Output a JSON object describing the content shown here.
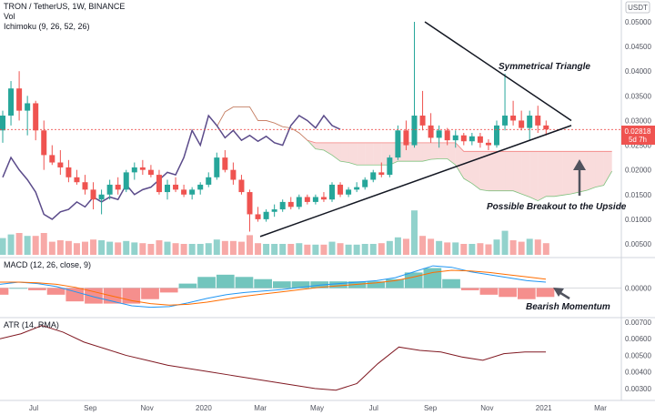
{
  "header": {
    "symbol": "TRON / TetherUS, 1W, BINANCE",
    "vol_label": "Vol",
    "ichimoku_label": "Ichimoku (9, 26, 52, 26)",
    "quote_currency": "USDT"
  },
  "price_axis": {
    "ticks": [
      "0.05000",
      "0.04500",
      "0.04000",
      "0.03500",
      "0.03000",
      "0.02500",
      "0.02000",
      "0.01500",
      "0.01000",
      "0.00500"
    ],
    "current_price": "0.02818",
    "countdown": "5d 7h",
    "current_color": "#ef5350"
  },
  "time_axis": {
    "labels": [
      "Jul",
      "Sep",
      "Nov",
      "2020",
      "Mar",
      "May",
      "Jul",
      "Sep",
      "Nov",
      "2021",
      "Mar"
    ]
  },
  "macd": {
    "label": "MACD (12, 26, close, 9)",
    "tick": "0.00000"
  },
  "atr": {
    "label": "ATR (14, RMA)",
    "ticks": [
      "0.00700",
      "0.00600",
      "0.00500",
      "0.00400",
      "0.00300"
    ]
  },
  "annotations": {
    "triangle": "Symmetrical Triangle",
    "breakout": "Possible Breakout to the Upside",
    "momentum": "Bearish Momentum"
  },
  "colors": {
    "up": "#26a69a",
    "down": "#ef5350",
    "macd_line": "#2196f3",
    "signal_line": "#ff6d00",
    "atr_line": "#801922",
    "lagging_span": "#5b4b8a",
    "cloud_bull": "#a5d6a7",
    "cloud_bear": "#ef9a9a"
  },
  "chart_data": {
    "type": "candlestick",
    "interval": "1W",
    "candles": [
      {
        "o": 0.028,
        "h": 0.032,
        "l": 0.0255,
        "c": 0.031
      },
      {
        "o": 0.031,
        "h": 0.038,
        "l": 0.029,
        "c": 0.0365
      },
      {
        "o": 0.0365,
        "h": 0.04,
        "l": 0.03,
        "c": 0.032
      },
      {
        "o": 0.032,
        "h": 0.035,
        "l": 0.027,
        "c": 0.0335
      },
      {
        "o": 0.0335,
        "h": 0.034,
        "l": 0.026,
        "c": 0.028
      },
      {
        "o": 0.028,
        "h": 0.03,
        "l": 0.02,
        "c": 0.023
      },
      {
        "o": 0.023,
        "h": 0.025,
        "l": 0.021,
        "c": 0.0215
      },
      {
        "o": 0.0215,
        "h": 0.024,
        "l": 0.019,
        "c": 0.0205
      },
      {
        "o": 0.0205,
        "h": 0.022,
        "l": 0.0175,
        "c": 0.0185
      },
      {
        "o": 0.0185,
        "h": 0.02,
        "l": 0.017,
        "c": 0.0175
      },
      {
        "o": 0.0175,
        "h": 0.019,
        "l": 0.015,
        "c": 0.016
      },
      {
        "o": 0.016,
        "h": 0.0175,
        "l": 0.012,
        "c": 0.014
      },
      {
        "o": 0.014,
        "h": 0.016,
        "l": 0.011,
        "c": 0.015
      },
      {
        "o": 0.015,
        "h": 0.018,
        "l": 0.014,
        "c": 0.017
      },
      {
        "o": 0.017,
        "h": 0.0185,
        "l": 0.015,
        "c": 0.016
      },
      {
        "o": 0.016,
        "h": 0.02,
        "l": 0.0155,
        "c": 0.0195
      },
      {
        "o": 0.0195,
        "h": 0.0215,
        "l": 0.018,
        "c": 0.0205
      },
      {
        "o": 0.0205,
        "h": 0.022,
        "l": 0.019,
        "c": 0.02
      },
      {
        "o": 0.02,
        "h": 0.021,
        "l": 0.0185,
        "c": 0.019
      },
      {
        "o": 0.019,
        "h": 0.02,
        "l": 0.015,
        "c": 0.0155
      },
      {
        "o": 0.0155,
        "h": 0.018,
        "l": 0.014,
        "c": 0.017
      },
      {
        "o": 0.017,
        "h": 0.0185,
        "l": 0.0155,
        "c": 0.016
      },
      {
        "o": 0.016,
        "h": 0.017,
        "l": 0.0145,
        "c": 0.015
      },
      {
        "o": 0.015,
        "h": 0.0165,
        "l": 0.014,
        "c": 0.016
      },
      {
        "o": 0.016,
        "h": 0.0175,
        "l": 0.015,
        "c": 0.017
      },
      {
        "o": 0.017,
        "h": 0.0195,
        "l": 0.0165,
        "c": 0.0185
      },
      {
        "o": 0.0185,
        "h": 0.0235,
        "l": 0.018,
        "c": 0.0225
      },
      {
        "o": 0.0225,
        "h": 0.024,
        "l": 0.0195,
        "c": 0.02
      },
      {
        "o": 0.02,
        "h": 0.0215,
        "l": 0.017,
        "c": 0.018
      },
      {
        "o": 0.018,
        "h": 0.019,
        "l": 0.015,
        "c": 0.0155
      },
      {
        "o": 0.0155,
        "h": 0.016,
        "l": 0.0075,
        "c": 0.011
      },
      {
        "o": 0.011,
        "h": 0.0125,
        "l": 0.0095,
        "c": 0.01
      },
      {
        "o": 0.01,
        "h": 0.012,
        "l": 0.0095,
        "c": 0.0115
      },
      {
        "o": 0.0115,
        "h": 0.013,
        "l": 0.0105,
        "c": 0.012
      },
      {
        "o": 0.012,
        "h": 0.014,
        "l": 0.0115,
        "c": 0.0135
      },
      {
        "o": 0.0135,
        "h": 0.0145,
        "l": 0.012,
        "c": 0.0125
      },
      {
        "o": 0.0125,
        "h": 0.015,
        "l": 0.012,
        "c": 0.0145
      },
      {
        "o": 0.0145,
        "h": 0.015,
        "l": 0.013,
        "c": 0.0135
      },
      {
        "o": 0.0135,
        "h": 0.015,
        "l": 0.013,
        "c": 0.0145
      },
      {
        "o": 0.0145,
        "h": 0.0155,
        "l": 0.0135,
        "c": 0.014
      },
      {
        "o": 0.014,
        "h": 0.0175,
        "l": 0.0135,
        "c": 0.017
      },
      {
        "o": 0.017,
        "h": 0.0175,
        "l": 0.0145,
        "c": 0.015
      },
      {
        "o": 0.015,
        "h": 0.0165,
        "l": 0.0145,
        "c": 0.016
      },
      {
        "o": 0.016,
        "h": 0.0175,
        "l": 0.0155,
        "c": 0.0165
      },
      {
        "o": 0.0165,
        "h": 0.0185,
        "l": 0.016,
        "c": 0.018
      },
      {
        "o": 0.018,
        "h": 0.02,
        "l": 0.0175,
        "c": 0.0195
      },
      {
        "o": 0.0195,
        "h": 0.0215,
        "l": 0.0185,
        "c": 0.019
      },
      {
        "o": 0.019,
        "h": 0.023,
        "l": 0.0185,
        "c": 0.0225
      },
      {
        "o": 0.0225,
        "h": 0.029,
        "l": 0.022,
        "c": 0.028
      },
      {
        "o": 0.028,
        "h": 0.03,
        "l": 0.024,
        "c": 0.025
      },
      {
        "o": 0.025,
        "h": 0.05,
        "l": 0.0245,
        "c": 0.031
      },
      {
        "o": 0.031,
        "h": 0.036,
        "l": 0.028,
        "c": 0.029
      },
      {
        "o": 0.029,
        "h": 0.0315,
        "l": 0.0255,
        "c": 0.0265
      },
      {
        "o": 0.0265,
        "h": 0.029,
        "l": 0.0245,
        "c": 0.028
      },
      {
        "o": 0.028,
        "h": 0.0285,
        "l": 0.025,
        "c": 0.026
      },
      {
        "o": 0.026,
        "h": 0.028,
        "l": 0.0245,
        "c": 0.027
      },
      {
        "o": 0.027,
        "h": 0.0275,
        "l": 0.025,
        "c": 0.0258
      },
      {
        "o": 0.0258,
        "h": 0.0275,
        "l": 0.025,
        "c": 0.0268
      },
      {
        "o": 0.0268,
        "h": 0.0275,
        "l": 0.0245,
        "c": 0.0255
      },
      {
        "o": 0.0255,
        "h": 0.0262,
        "l": 0.024,
        "c": 0.025
      },
      {
        "o": 0.025,
        "h": 0.03,
        "l": 0.0245,
        "c": 0.029
      },
      {
        "o": 0.029,
        "h": 0.0395,
        "l": 0.028,
        "c": 0.031
      },
      {
        "o": 0.031,
        "h": 0.034,
        "l": 0.029,
        "c": 0.03
      },
      {
        "o": 0.03,
        "h": 0.032,
        "l": 0.028,
        "c": 0.0285
      },
      {
        "o": 0.0285,
        "h": 0.032,
        "l": 0.026,
        "c": 0.031
      },
      {
        "o": 0.031,
        "h": 0.033,
        "l": 0.0275,
        "c": 0.029
      },
      {
        "o": 0.029,
        "h": 0.03,
        "l": 0.027,
        "c": 0.0282
      }
    ],
    "volume_direction": "up/down colored per candle",
    "cloud": "Ichimoku cloud, shaded green (bullish) and red (bearish)",
    "macd_line_values": [
      0.0005,
      0.0008,
      0.0006,
      0.0002,
      -0.0005,
      -0.0012,
      -0.0018,
      -0.0024,
      -0.0026,
      -0.0025,
      -0.002,
      -0.0014,
      -0.0009,
      -0.0006,
      -0.0004,
      -0.0002,
      0.0001,
      0.0004,
      0.0006,
      0.0008,
      0.001,
      0.0014,
      0.0022,
      0.003,
      0.0028,
      0.0022,
      0.0018,
      0.0014,
      0.001,
      0.0008
    ],
    "signal_line_values": [
      0.0008,
      0.0008,
      0.0007,
      0.0005,
      0.0001,
      -0.0005,
      -0.0011,
      -0.0017,
      -0.0021,
      -0.0023,
      -0.0022,
      -0.0019,
      -0.0015,
      -0.0011,
      -0.0008,
      -0.0005,
      -0.0002,
      0.0001,
      0.0003,
      0.0005,
      0.0007,
      0.001,
      0.0015,
      0.0021,
      0.0024,
      0.0023,
      0.0021,
      0.0018,
      0.0015,
      0.0012
    ],
    "atr_values": [
      0.006,
      0.0063,
      0.0068,
      0.0064,
      0.0058,
      0.0054,
      0.005,
      0.0047,
      0.0044,
      0.0042,
      0.004,
      0.0038,
      0.0036,
      0.0034,
      0.0032,
      0.003,
      0.0029,
      0.0033,
      0.0045,
      0.0055,
      0.0053,
      0.0052,
      0.0049,
      0.0047,
      0.0051,
      0.0052,
      0.0052
    ],
    "triangle": {
      "upper_start": 0.05,
      "upper_end": 0.03,
      "lower_start": 0.0065,
      "lower_end": 0.029
    }
  }
}
